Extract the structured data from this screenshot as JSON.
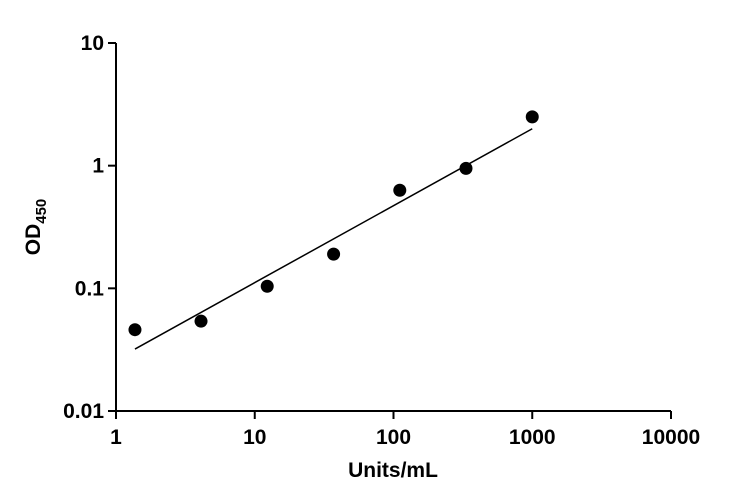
{
  "chart_data": {
    "type": "scatter",
    "xlabel": "Units/mL",
    "ylabel": "OD",
    "ylabel_subscript": "450",
    "log_x": true,
    "log_y": true,
    "x": [
      1.37,
      4.1,
      12.3,
      37,
      111,
      333,
      1000
    ],
    "values": [
      0.046,
      0.054,
      0.104,
      0.19,
      0.63,
      0.95,
      2.5
    ],
    "color": "#000000",
    "fit": {
      "x": [
        1.37,
        1000
      ],
      "y": [
        0.032,
        2.0
      ]
    },
    "xlim": [
      1,
      10000
    ],
    "xticks": [
      1,
      10,
      100,
      1000,
      10000
    ],
    "ylim": [
      0.01,
      10
    ],
    "yticks": [
      0.01,
      0.1,
      1,
      10
    ]
  }
}
